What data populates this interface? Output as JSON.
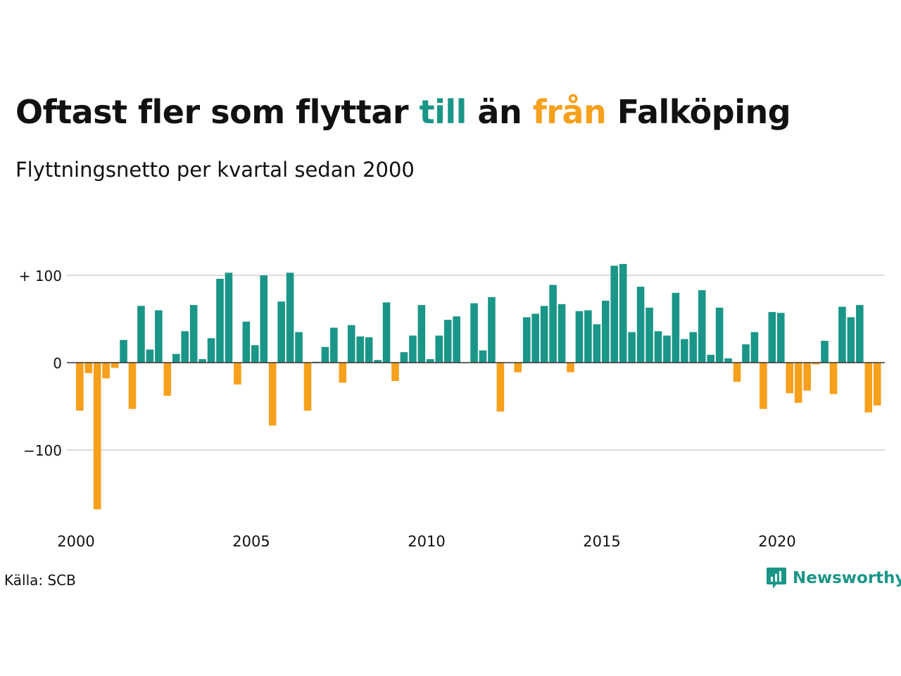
{
  "title": {
    "part1": "Oftast fler som flyttar ",
    "till": "till",
    "part2": " än ",
    "fran": "från",
    "part3": " Falköping"
  },
  "subtitle": "Flyttningsnetto per kvartal sedan 2000",
  "source": "Källa: SCB",
  "brand": "Newsworthy",
  "colors": {
    "positive": "#1a9688",
    "negative": "#f7a01c",
    "grid": "#dddddd",
    "zero": "#333333",
    "text": "#111111"
  },
  "chart_data": {
    "type": "bar",
    "title": "Oftast fler som flyttar till än från Falköping",
    "subtitle": "Flyttningsnetto per kvartal sedan 2000",
    "xlabel": "",
    "ylabel": "",
    "x_start_year": 2000,
    "periods_per_year": 4,
    "ylim": [
      -170,
      115
    ],
    "yticks": [
      {
        "value": 100,
        "label": "+ 100"
      },
      {
        "value": 0,
        "label": "0"
      },
      {
        "value": -100,
        "label": "−100"
      }
    ],
    "xticks": [
      "2000",
      "2005",
      "2010",
      "2015",
      "2020"
    ],
    "grid": true,
    "values": [
      -55,
      -12,
      -168,
      -18,
      -6,
      26,
      -53,
      65,
      15,
      60,
      -38,
      10,
      36,
      66,
      4,
      28,
      96,
      103,
      -25,
      47,
      20,
      100,
      -72,
      70,
      103,
      35,
      -55,
      1,
      18,
      40,
      -23,
      43,
      30,
      29,
      3,
      69,
      -21,
      12,
      31,
      66,
      4,
      31,
      49,
      53,
      0,
      68,
      14,
      75,
      -56,
      0,
      -11,
      52,
      56,
      65,
      89,
      67,
      -11,
      59,
      60,
      44,
      71,
      111,
      113,
      35,
      87,
      63,
      36,
      31,
      80,
      27,
      35,
      83,
      9,
      63,
      5,
      -22,
      21,
      35,
      -53,
      58,
      57,
      -35,
      -46,
      -32,
      -2,
      25,
      -36,
      64,
      52,
      66,
      -57,
      -49
    ]
  }
}
